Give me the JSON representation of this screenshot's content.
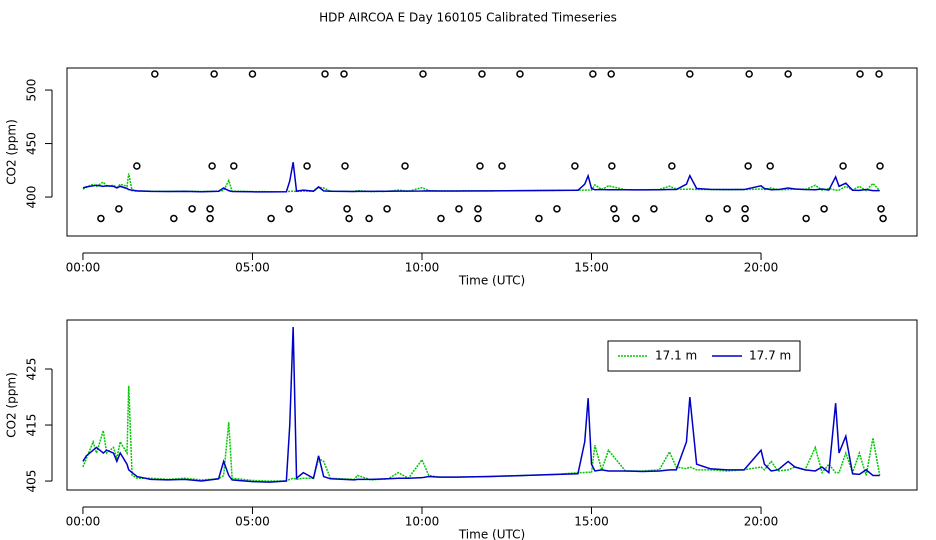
{
  "chart_data": [
    {
      "type": "line",
      "title": "HDP AIRCOA E  Day 160105  Calibrated Timeseries",
      "xlabel": "Time (UTC)",
      "ylabel": "CO2 (ppm)",
      "x": [
        0,
        0.1,
        0.3,
        0.4,
        0.6,
        0.7,
        0.9,
        1.0,
        1.1,
        1.3,
        1.35,
        1.45,
        1.6,
        2.0,
        2.5,
        3.0,
        3.5,
        4.0,
        4.15,
        4.3,
        4.4,
        5.0,
        5.5,
        6.0,
        6.1,
        6.2,
        6.3,
        6.5,
        6.8,
        6.95,
        7.1,
        7.3,
        8.0,
        8.1,
        8.5,
        9.0,
        9.3,
        9.6,
        10.0,
        10.2,
        10.5,
        11,
        12,
        13,
        14,
        14.6,
        14.8,
        14.9,
        15.0,
        15.1,
        15.3,
        15.5,
        16,
        16.5,
        17,
        17.3,
        17.5,
        17.8,
        17.9,
        18.1,
        18.5,
        19,
        19.5,
        20,
        20.1,
        20.3,
        20.5,
        20.8,
        21,
        21.3,
        21.6,
        21.8,
        22.0,
        22.2,
        22.3,
        22.5,
        22.7,
        22.9,
        23.1,
        23.3,
        23.5
      ],
      "series": [
        {
          "color": "#00c800",
          "values": [
            407.5,
            409,
            412,
            410,
            414,
            410,
            411,
            409,
            412,
            410,
            422,
            406,
            405.5,
            405.5,
            405.3,
            405.5,
            405.2,
            405.4,
            406,
            415.5,
            405.5,
            405.1,
            405,
            405,
            405.3,
            405.5,
            405.3,
            405.5,
            405.5,
            409,
            408.5,
            405.5,
            405.3,
            406,
            405.2,
            405.4,
            406.5,
            405.5,
            408.8,
            406,
            405.7,
            405.7,
            405.8,
            406,
            406.2,
            406.5,
            406.5,
            406.6,
            406.5,
            411.4,
            407,
            410.5,
            406.8,
            406.8,
            407,
            410.2,
            407.5,
            407.2,
            407.5,
            407,
            407,
            406.8,
            407,
            407.5,
            407,
            408.5,
            406.8,
            407,
            407.5,
            407,
            411,
            406.5,
            408,
            406.5,
            406.5,
            410,
            406.5,
            410,
            406,
            412.7,
            406
          ]
        },
        {
          "color": "#0000c8",
          "values": [
            408.5,
            409.5,
            410.5,
            411,
            410,
            410.5,
            410,
            408.5,
            410,
            408,
            407,
            406.5,
            405.8,
            405.3,
            405.2,
            405.3,
            405,
            405.4,
            408.5,
            406,
            405.2,
            404.9,
            404.8,
            405,
            415,
            432.5,
            405.5,
            406.5,
            405.5,
            409.5,
            405.8,
            405.4,
            405.2,
            405.3,
            405.3,
            405.4,
            405.5,
            405.5,
            405.6,
            405.8,
            405.7,
            405.7,
            405.8,
            406,
            406.2,
            406.3,
            412,
            419.8,
            408,
            406.8,
            407,
            406.8,
            406.8,
            406.7,
            406.8,
            407,
            407,
            412,
            420,
            408,
            407.2,
            407,
            407,
            410.5,
            408,
            406.8,
            407,
            408.5,
            407.5,
            407,
            406.8,
            407.5,
            406.5,
            418.9,
            410,
            413,
            406.3,
            406.2,
            407,
            406,
            406
          ]
        }
      ],
      "markers": {
        "color": "#000000",
        "x": [
          2.12,
          3.87,
          5.0,
          7.14,
          7.7,
          10.03,
          11.77,
          12.89,
          15.04,
          15.58,
          17.9,
          19.65,
          20.8,
          22.92,
          23.48,
          1.59,
          3.81,
          4.45,
          6.61,
          7.73,
          9.5,
          11.71,
          12.36,
          14.51,
          15.6,
          17.37,
          19.62,
          20.27,
          22.42,
          23.51,
          1.06,
          3.22,
          3.75,
          6.08,
          7.79,
          8.97,
          11.09,
          11.65,
          13.98,
          15.66,
          16.84,
          19.0,
          19.53,
          21.86,
          23.54,
          0.53,
          2.68,
          3.75,
          5.55,
          7.85,
          8.44,
          10.56,
          11.65,
          13.45,
          15.72,
          16.31,
          18.47,
          19.53,
          21.33,
          23.6
        ],
        "y": [
          515,
          515,
          515,
          515,
          515,
          515,
          515,
          515,
          515,
          515,
          515,
          515,
          515,
          515,
          515,
          429,
          429,
          429,
          429,
          429,
          429,
          429,
          429,
          429,
          429,
          429,
          429,
          429,
          429,
          429,
          389,
          389,
          389,
          389,
          389,
          389,
          389,
          389,
          389,
          389,
          389,
          389,
          389,
          389,
          389,
          380,
          380,
          380,
          380,
          380,
          380,
          380,
          380,
          380,
          380,
          380,
          380,
          380,
          380,
          380
        ]
      },
      "xlim": [
        -0.47,
        24.6
      ],
      "xticks": [
        {
          "value": 0,
          "label": "00:00"
        },
        {
          "value": 5,
          "label": "05:00"
        },
        {
          "value": 10,
          "label": "10:00"
        },
        {
          "value": 15,
          "label": "15:00"
        },
        {
          "value": 20,
          "label": "20:00"
        }
      ],
      "ylim": [
        363.6,
        520.6
      ],
      "yticks": [
        400,
        450,
        500
      ]
    },
    {
      "type": "line",
      "xlabel": "Time (UTC)",
      "ylabel": "CO2 (ppm)",
      "x": [
        0,
        0.1,
        0.3,
        0.4,
        0.6,
        0.7,
        0.9,
        1.0,
        1.1,
        1.3,
        1.35,
        1.45,
        1.6,
        2.0,
        2.5,
        3.0,
        3.5,
        4.0,
        4.15,
        4.3,
        4.4,
        5.0,
        5.5,
        6.0,
        6.1,
        6.2,
        6.3,
        6.5,
        6.8,
        6.95,
        7.1,
        7.3,
        8.0,
        8.1,
        8.5,
        9.0,
        9.3,
        9.6,
        10.0,
        10.2,
        10.5,
        11,
        12,
        13,
        14,
        14.6,
        14.8,
        14.9,
        15.0,
        15.1,
        15.3,
        15.5,
        16,
        16.5,
        17,
        17.3,
        17.5,
        17.8,
        17.9,
        18.1,
        18.5,
        19,
        19.5,
        20,
        20.1,
        20.3,
        20.5,
        20.8,
        21,
        21.3,
        21.6,
        21.8,
        22.0,
        22.2,
        22.3,
        22.5,
        22.7,
        22.9,
        23.1,
        23.3,
        23.5
      ],
      "series": [
        {
          "name": "17.1 m",
          "color": "#00c800",
          "values": [
            407.5,
            409,
            412,
            410,
            414,
            410,
            411,
            409,
            412,
            410,
            422,
            406,
            405.5,
            405.5,
            405.3,
            405.5,
            405.2,
            405.4,
            406,
            415.5,
            405.5,
            405.1,
            405,
            405,
            405.3,
            405.5,
            405.3,
            405.5,
            405.5,
            409,
            408.5,
            405.5,
            405.3,
            406,
            405.2,
            405.4,
            406.5,
            405.5,
            408.8,
            406,
            405.7,
            405.7,
            405.8,
            406,
            406.2,
            406.5,
            406.5,
            406.6,
            406.5,
            411.4,
            407,
            410.5,
            406.8,
            406.8,
            407,
            410.2,
            407.5,
            407.2,
            407.5,
            407,
            407,
            406.8,
            407,
            407.5,
            407,
            408.5,
            406.8,
            407,
            407.5,
            407,
            411,
            406.5,
            408,
            406.5,
            406.5,
            410,
            406.5,
            410,
            406,
            412.7,
            406
          ]
        },
        {
          "name": "17.7 m",
          "color": "#0000c8",
          "values": [
            408.5,
            409.5,
            410.5,
            411,
            410,
            410.5,
            410,
            408.5,
            410,
            408,
            407,
            406.5,
            405.8,
            405.3,
            405.2,
            405.3,
            405,
            405.4,
            408.5,
            406,
            405.2,
            404.9,
            404.8,
            405,
            415,
            432.5,
            405.5,
            406.5,
            405.5,
            409.5,
            405.8,
            405.4,
            405.2,
            405.3,
            405.3,
            405.4,
            405.5,
            405.5,
            405.6,
            405.8,
            405.7,
            405.7,
            405.8,
            406,
            406.2,
            406.3,
            412,
            419.8,
            408,
            406.8,
            407,
            406.8,
            406.8,
            406.7,
            406.8,
            407,
            407,
            412,
            420,
            408,
            407.2,
            407,
            407,
            410.5,
            408,
            406.8,
            407,
            408.5,
            407.5,
            407,
            406.8,
            407.5,
            406.5,
            418.9,
            410,
            413,
            406.3,
            406.2,
            407,
            406,
            406
          ]
        }
      ],
      "legend": "top-right",
      "xlim": [
        -0.47,
        24.6
      ],
      "xticks": [
        {
          "value": 0,
          "label": "00:00"
        },
        {
          "value": 5,
          "label": "05:00"
        },
        {
          "value": 10,
          "label": "10:00"
        },
        {
          "value": 15,
          "label": "15:00"
        },
        {
          "value": 20,
          "label": "20:00"
        }
      ],
      "ylim": [
        403.4,
        433.75
      ],
      "yticks": [
        405,
        415,
        425
      ]
    }
  ]
}
